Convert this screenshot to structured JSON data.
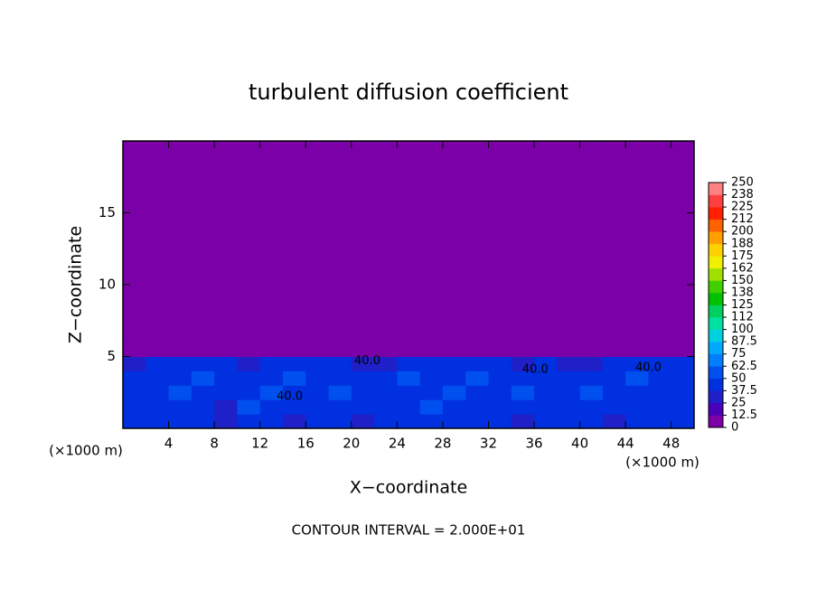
{
  "chart_data": {
    "type": "contour",
    "title": "turbulent diffusion coefficient",
    "xlabel": "X−coordinate",
    "ylabel": "Z−coordinate",
    "x_unit_label": "(×1000 m)",
    "x_unit_label_right": "(×1000 m)",
    "footer": "CONTOUR INTERVAL = 2.000E+01",
    "xlim": [
      0,
      50
    ],
    "ylim": [
      0,
      20
    ],
    "xticks": [
      4,
      8,
      12,
      16,
      20,
      24,
      28,
      32,
      36,
      40,
      44,
      48
    ],
    "yticks": [
      5,
      10,
      15
    ],
    "xbins": [
      0,
      2,
      4,
      6,
      8,
      10,
      12,
      14,
      16,
      18,
      20,
      22,
      24,
      26,
      28,
      30,
      32,
      34,
      36,
      38,
      40,
      42,
      44,
      46,
      48,
      50
    ],
    "ybins": [
      0,
      1,
      2,
      3,
      4,
      5,
      6,
      20
    ],
    "z": [
      [
        40,
        45,
        38,
        42,
        35,
        40,
        45,
        30,
        38,
        42,
        36,
        44,
        40,
        38,
        45,
        40,
        42,
        36,
        38,
        44,
        40,
        35,
        42,
        38,
        40
      ],
      [
        45,
        42,
        48,
        40,
        35,
        50,
        42,
        45,
        38,
        40,
        48,
        44,
        42,
        50,
        45,
        40,
        38,
        44,
        48,
        42,
        45,
        40,
        44,
        46,
        42
      ],
      [
        42,
        48,
        52,
        45,
        40,
        42,
        50,
        38,
        46,
        52,
        44,
        48,
        40,
        45,
        50,
        42,
        48,
        52,
        40,
        44,
        50,
        46,
        42,
        48,
        44
      ],
      [
        38,
        45,
        42,
        50,
        44,
        40,
        48,
        52,
        45,
        42,
        46,
        40,
        50,
        44,
        48,
        52,
        45,
        40,
        46,
        42,
        48,
        44,
        50,
        46,
        42
      ],
      [
        30,
        40,
        44,
        38,
        45,
        35,
        42,
        40,
        44,
        38,
        30,
        36,
        40,
        42,
        38,
        44,
        40,
        35,
        38,
        32,
        36,
        42,
        44,
        40,
        38
      ],
      [
        0,
        0,
        8,
        10,
        6,
        0,
        10,
        8,
        0,
        0,
        0,
        0,
        0,
        0,
        0,
        0,
        6,
        8,
        0,
        0,
        0,
        0,
        0,
        0,
        0
      ],
      [
        0,
        0,
        0,
        0,
        0,
        0,
        0,
        0,
        0,
        0,
        0,
        0,
        0,
        0,
        0,
        0,
        0,
        0,
        0,
        0,
        0,
        0,
        0,
        0,
        0
      ]
    ],
    "contour_labels": [
      {
        "text": "40.0",
        "x": 21.4,
        "y": 4.7
      },
      {
        "text": "40.0",
        "x": 36.1,
        "y": 4.1
      },
      {
        "text": "40.0",
        "x": 46,
        "y": 4.2
      },
      {
        "text": "40.0",
        "x": 14.6,
        "y": 2.2
      }
    ],
    "colorbar_lim": [
      0,
      250
    ],
    "colorbar_ticks": [
      0,
      12.5,
      25,
      37.5,
      50,
      62.5,
      75,
      87.5,
      100,
      {
        "value": 112.5,
        "label": "112"
      },
      125,
      {
        "value": 137.5,
        "label": "138"
      },
      150,
      {
        "value": 162.5,
        "label": "162"
      },
      175,
      {
        "value": 187.5,
        "label": "188"
      },
      200,
      {
        "value": 212.5,
        "label": "212"
      },
      225,
      {
        "value": 237.5,
        "label": "238"
      },
      250
    ],
    "colors": [
      "#7b00a8",
      "#4a00b8",
      "#2020c8",
      "#0030e0",
      "#0050f0",
      "#0080ff",
      "#00a8ff",
      "#00d0e0",
      "#00e0a0",
      "#00d060",
      "#00c000",
      "#40d000",
      "#a0e000",
      "#f0f000",
      "#ffd000",
      "#ffa000",
      "#ff6000",
      "#ff2000",
      "#ff4040",
      "#ff8080"
    ]
  }
}
